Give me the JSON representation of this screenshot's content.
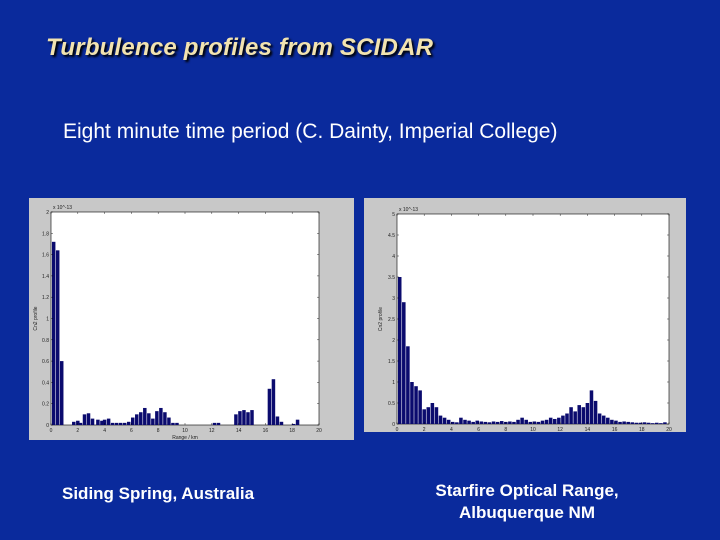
{
  "title": "Turbulence profiles from SCIDAR",
  "subtitle": "Eight minute time period (C. Dainty, Imperial College)",
  "captions": {
    "left": "Siding Spring, Australia",
    "right": "Starfire Optical Range, Albuquerque NM"
  },
  "colors": {
    "background": "#0a2a9c",
    "title": "#f2e3b0",
    "bar": "#0b0b6e",
    "panel": "#c8c8c8",
    "plot": "#ffffff"
  },
  "chart_data": [
    {
      "type": "bar",
      "title": "",
      "xlabel": "Range / km",
      "ylabel": "Cn2 profile",
      "multiplier": "x 10^-13",
      "xlim": [
        0,
        20
      ],
      "ylim": [
        0,
        2
      ],
      "xticks": [
        "0",
        "2",
        "4",
        "6",
        "8",
        "10",
        "12",
        "14",
        "16",
        "18",
        "20"
      ],
      "yticks": [
        "0",
        "0.2",
        "0.4",
        "0.6",
        "0.8",
        "1",
        "1.2",
        "1.4",
        "1.6",
        "1.8",
        "2"
      ],
      "grid": false,
      "x": [
        0.2,
        0.5,
        0.8,
        1.7,
        2.0,
        2.2,
        2.5,
        2.8,
        3.1,
        3.5,
        3.8,
        4.0,
        4.3,
        4.6,
        4.9,
        5.2,
        5.5,
        5.8,
        6.1,
        6.4,
        6.7,
        7.0,
        7.3,
        7.6,
        7.9,
        8.2,
        8.5,
        8.8,
        9.1,
        9.4,
        12.2,
        12.5,
        13.8,
        14.1,
        14.4,
        14.7,
        15.0,
        16.3,
        16.6,
        16.9,
        17.2,
        18.1,
        18.4
      ],
      "values": [
        1.72,
        1.64,
        0.6,
        0.03,
        0.04,
        0.02,
        0.1,
        0.11,
        0.06,
        0.05,
        0.04,
        0.05,
        0.06,
        0.02,
        0.02,
        0.02,
        0.02,
        0.03,
        0.07,
        0.1,
        0.12,
        0.16,
        0.11,
        0.06,
        0.13,
        0.16,
        0.12,
        0.07,
        0.02,
        0.02,
        0.02,
        0.02,
        0.1,
        0.13,
        0.14,
        0.12,
        0.14,
        0.34,
        0.43,
        0.08,
        0.03,
        0.01,
        0.05
      ]
    },
    {
      "type": "bar",
      "title": "",
      "xlabel": "Range / km",
      "ylabel": "Cn2 profile",
      "multiplier": "x 10^-13",
      "xlim": [
        0,
        20
      ],
      "ylim": [
        0,
        5
      ],
      "xticks": [
        "0",
        "2",
        "4",
        "6",
        "8",
        "10",
        "12",
        "14",
        "16",
        "18",
        "20"
      ],
      "yticks": [
        "0",
        "0.5",
        "1",
        "1.5",
        "2",
        "2.5",
        "3",
        "3.5",
        "4",
        "4.5",
        "5"
      ],
      "grid": false,
      "x": [
        0.2,
        0.5,
        0.8,
        1.1,
        1.4,
        1.7,
        2.0,
        2.3,
        2.6,
        2.9,
        3.2,
        3.5,
        3.8,
        4.1,
        4.4,
        4.7,
        5.0,
        5.3,
        5.6,
        5.9,
        6.2,
        6.5,
        6.8,
        7.1,
        7.4,
        7.7,
        8.0,
        8.3,
        8.6,
        8.9,
        9.2,
        9.5,
        9.8,
        10.1,
        10.4,
        10.7,
        11.0,
        11.3,
        11.6,
        11.9,
        12.2,
        12.5,
        12.8,
        13.1,
        13.4,
        13.7,
        14.0,
        14.3,
        14.6,
        14.9,
        15.2,
        15.5,
        15.8,
        16.1,
        16.4,
        16.7,
        17.0,
        17.3,
        17.6,
        17.9,
        18.2,
        18.5,
        18.8,
        19.1,
        19.4,
        19.7
      ],
      "values": [
        3.5,
        2.9,
        1.85,
        1.0,
        0.9,
        0.8,
        0.35,
        0.4,
        0.5,
        0.4,
        0.2,
        0.15,
        0.1,
        0.05,
        0.04,
        0.15,
        0.1,
        0.08,
        0.05,
        0.08,
        0.06,
        0.05,
        0.04,
        0.06,
        0.05,
        0.07,
        0.05,
        0.06,
        0.05,
        0.1,
        0.15,
        0.1,
        0.05,
        0.06,
        0.05,
        0.08,
        0.1,
        0.15,
        0.12,
        0.15,
        0.2,
        0.25,
        0.4,
        0.3,
        0.45,
        0.4,
        0.5,
        0.8,
        0.55,
        0.25,
        0.2,
        0.15,
        0.1,
        0.08,
        0.05,
        0.06,
        0.05,
        0.04,
        0.03,
        0.03,
        0.04,
        0.03,
        0.02,
        0.03,
        0.02,
        0.04
      ]
    }
  ]
}
